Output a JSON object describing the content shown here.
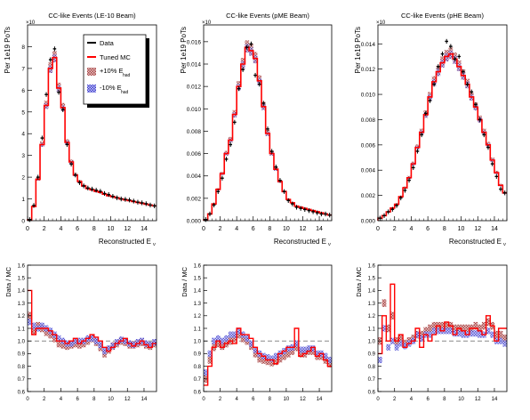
{
  "legend": {
    "data": "Data",
    "tuned_mc": "Tuned MC",
    "plus10": "+10% E",
    "minus10": "-10% E",
    "sub": "had"
  },
  "colors": {
    "data": "#000000",
    "mc": "#ff0000",
    "plus10": "#b04a4a",
    "minus10": "#3a3ad0",
    "ratio_line": "#888888"
  },
  "chart_data": [
    {
      "type": "line",
      "title": "CC-like Events (LE-10 Beam)",
      "xlabel": "Reconstructed E",
      "xlabel_sub": "ν",
      "ylabel": "Per 1e19 PoTs",
      "y_exponent": "×10",
      "xlim": [
        0,
        15.5
      ],
      "ylim": [
        0,
        9
      ],
      "xticks": [
        "0",
        "2",
        "4",
        "6",
        "8",
        "10",
        "12",
        "14"
      ],
      "yticks": [
        "0",
        "1",
        "2",
        "3",
        "4",
        "5",
        "6",
        "7",
        "8"
      ],
      "x": [
        0.25,
        0.75,
        1.25,
        1.75,
        2.25,
        2.75,
        3.25,
        3.75,
        4.25,
        4.75,
        5.25,
        5.75,
        6.25,
        6.75,
        7.25,
        7.75,
        8.25,
        8.75,
        9.25,
        9.75,
        10.25,
        10.75,
        11.25,
        11.75,
        12.25,
        12.75,
        13.25,
        13.75,
        14.25,
        14.75,
        15.25
      ],
      "series": [
        {
          "name": "Data",
          "values": [
            0.05,
            0.7,
            2.0,
            3.8,
            5.8,
            7.4,
            7.9,
            5.9,
            5.1,
            3.5,
            2.6,
            2.1,
            1.75,
            1.6,
            1.5,
            1.45,
            1.4,
            1.35,
            1.25,
            1.2,
            1.12,
            1.05,
            1.0,
            0.98,
            0.95,
            0.9,
            0.85,
            0.82,
            0.78,
            0.72,
            0.68
          ]
        },
        {
          "name": "Tuned MC",
          "values": [
            0.05,
            0.65,
            1.9,
            3.5,
            5.3,
            7.0,
            7.5,
            6.1,
            5.2,
            3.6,
            2.7,
            2.1,
            1.8,
            1.6,
            1.48,
            1.42,
            1.35,
            1.3,
            1.22,
            1.15,
            1.1,
            1.05,
            1.0,
            0.96,
            0.92,
            0.88,
            0.84,
            0.8,
            0.76,
            0.72,
            0.68
          ]
        }
      ],
      "ratio": {
        "ylabel": "Data / MC",
        "ylim": [
          0.6,
          1.6
        ],
        "yticks": [
          "0.6",
          "0.7",
          "0.8",
          "0.9",
          "1.0",
          "1.1",
          "1.2",
          "1.3",
          "1.4",
          "1.5",
          "1.6"
        ],
        "data_values": [
          1.4,
          1.05,
          1.1,
          1.1,
          1.1,
          1.08,
          1.05,
          1.0,
          1.0,
          0.98,
          1.0,
          1.02,
          0.98,
          1.0,
          1.02,
          1.05,
          1.03,
          1.0,
          0.95,
          0.92,
          0.95,
          0.98,
          1.0,
          1.02,
          0.98,
          0.96,
          0.98,
          1.0,
          0.97,
          0.95,
          0.98
        ],
        "plus_values": [
          1.2,
          1.08,
          1.12,
          1.1,
          1.07,
          1.05,
          1.02,
          0.98,
          0.97,
          0.96,
          0.97,
          0.98,
          0.97,
          0.98,
          1.0,
          1.02,
          0.99,
          0.95,
          0.9,
          0.93,
          0.96,
          0.98,
          1.0,
          0.99,
          0.97,
          0.97,
          0.98,
          0.99,
          0.97,
          0.96,
          0.98
        ],
        "minus_values": [
          1.15,
          1.12,
          1.1,
          1.12,
          1.1,
          1.08,
          1.05,
          1.02,
          1.0,
          0.98,
          0.98,
          1.0,
          1.0,
          1.0,
          1.02,
          1.02,
          1.0,
          0.97,
          0.92,
          0.94,
          0.96,
          0.99,
          1.01,
          1.0,
          0.98,
          0.97,
          0.99,
          1.0,
          0.98,
          0.97,
          0.99
        ]
      }
    },
    {
      "type": "line",
      "title": "CC-like Events (pME Beam)",
      "xlabel": "Reconstructed E",
      "xlabel_sub": "ν",
      "ylabel": "Per 1e19 PoTs",
      "y_exponent": "×10",
      "xlim": [
        0,
        15.5
      ],
      "ylim": [
        0,
        0.0175
      ],
      "xticks": [
        "0",
        "2",
        "4",
        "6",
        "8",
        "10",
        "12",
        "14"
      ],
      "yticks": [
        "0.000",
        "0.002",
        "0.004",
        "0.006",
        "0.008",
        "0.010",
        "0.012",
        "0.014",
        "0.016"
      ],
      "x": [
        0.25,
        0.75,
        1.25,
        1.75,
        2.25,
        2.75,
        3.25,
        3.75,
        4.25,
        4.75,
        5.25,
        5.75,
        6.25,
        6.75,
        7.25,
        7.75,
        8.25,
        8.75,
        9.25,
        9.75,
        10.25,
        10.75,
        11.25,
        11.75,
        12.25,
        12.75,
        13.25,
        13.75,
        14.25,
        14.75,
        15.25
      ],
      "series": [
        {
          "name": "Data",
          "values": [
            0.0001,
            0.0006,
            0.0014,
            0.0026,
            0.0038,
            0.0055,
            0.0068,
            0.0088,
            0.0118,
            0.0135,
            0.0155,
            0.0158,
            0.013,
            0.0122,
            0.0105,
            0.0082,
            0.0062,
            0.0048,
            0.0036,
            0.0026,
            0.0018,
            0.0015,
            0.0012,
            0.0011,
            0.001,
            0.0009,
            0.0008,
            0.0007,
            0.0006,
            0.0006,
            0.0005
          ]
        },
        {
          "name": "Tuned MC",
          "values": [
            0.0001,
            0.0006,
            0.0015,
            0.0028,
            0.0042,
            0.006,
            0.0072,
            0.0095,
            0.012,
            0.014,
            0.0155,
            0.0152,
            0.0145,
            0.0125,
            0.0102,
            0.0078,
            0.006,
            0.0046,
            0.0035,
            0.0026,
            0.0019,
            0.0016,
            0.0013,
            0.0012,
            0.0011,
            0.001,
            0.0009,
            0.0008,
            0.0007,
            0.0006,
            0.0005
          ]
        }
      ],
      "ratio": {
        "ylabel": "Data / MC",
        "ylim": [
          0.6,
          1.6
        ],
        "yticks": [
          "0.6",
          "0.7",
          "0.8",
          "0.9",
          "1.0",
          "1.1",
          "1.2",
          "1.3",
          "1.4",
          "1.5",
          "1.6"
        ],
        "data_values": [
          0.65,
          0.8,
          0.95,
          1.0,
          0.95,
          0.98,
          1.0,
          0.98,
          1.1,
          1.05,
          1.05,
          1.02,
          0.95,
          0.9,
          0.88,
          0.85,
          0.85,
          0.82,
          0.9,
          0.92,
          0.95,
          0.95,
          1.1,
          0.88,
          0.9,
          0.92,
          0.95,
          0.88,
          0.9,
          0.85,
          0.8
        ],
        "plus_values": [
          0.7,
          0.85,
          0.95,
          0.98,
          0.96,
          0.98,
          1.0,
          1.02,
          1.05,
          1.02,
          1.0,
          0.96,
          0.9,
          0.86,
          0.85,
          0.84,
          0.83,
          0.84,
          0.86,
          0.88,
          0.9,
          0.92,
          0.95,
          0.9,
          0.9,
          0.92,
          0.92,
          0.88,
          0.88,
          0.85,
          0.82
        ],
        "minus_values": [
          0.75,
          0.9,
          1.0,
          1.02,
          1.0,
          1.02,
          1.05,
          1.05,
          1.08,
          1.05,
          1.02,
          0.98,
          0.93,
          0.9,
          0.88,
          0.87,
          0.86,
          0.88,
          0.9,
          0.92,
          0.94,
          0.95,
          0.98,
          0.93,
          0.93,
          0.94,
          0.94,
          0.9,
          0.9,
          0.88,
          0.85
        ]
      }
    },
    {
      "type": "line",
      "title": "CC-like Events (pHE Beam)",
      "xlabel": "Reconstructed E",
      "xlabel_sub": "ν",
      "ylabel": "Per 1e19 PoTs",
      "y_exponent": "×10",
      "xlim": [
        0,
        15.5
      ],
      "ylim": [
        0,
        0.0155
      ],
      "xticks": [
        "0",
        "2",
        "4",
        "6",
        "8",
        "10",
        "12",
        "14"
      ],
      "yticks": [
        "0.000",
        "0.002",
        "0.004",
        "0.006",
        "0.008",
        "0.010",
        "0.012",
        "0.014"
      ],
      "x": [
        0.25,
        0.75,
        1.25,
        1.75,
        2.25,
        2.75,
        3.25,
        3.75,
        4.25,
        4.75,
        5.25,
        5.75,
        6.25,
        6.75,
        7.25,
        7.75,
        8.25,
        8.75,
        9.25,
        9.75,
        10.25,
        10.75,
        11.25,
        11.75,
        12.25,
        12.75,
        13.25,
        13.75,
        14.25,
        14.75,
        15.25
      ],
      "series": [
        {
          "name": "Data",
          "values": [
            0.0002,
            0.0004,
            0.0007,
            0.0009,
            0.0012,
            0.0018,
            0.0024,
            0.0032,
            0.0042,
            0.0055,
            0.0068,
            0.0085,
            0.0095,
            0.0108,
            0.0122,
            0.0132,
            0.0142,
            0.0138,
            0.0128,
            0.013,
            0.0118,
            0.0108,
            0.0102,
            0.0092,
            0.008,
            0.0068,
            0.0058,
            0.0045,
            0.0035,
            0.0025,
            0.0022
          ]
        },
        {
          "name": "Tuned MC",
          "values": [
            0.0002,
            0.0004,
            0.0007,
            0.001,
            0.0013,
            0.0019,
            0.0026,
            0.0034,
            0.0045,
            0.0058,
            0.007,
            0.0084,
            0.0098,
            0.011,
            0.0118,
            0.0125,
            0.013,
            0.0132,
            0.0128,
            0.0122,
            0.0115,
            0.0108,
            0.0098,
            0.009,
            0.008,
            0.007,
            0.006,
            0.0048,
            0.0038,
            0.0028,
            0.0022
          ]
        }
      ],
      "ratio": {
        "ylabel": "Data / MC",
        "ylim": [
          0.6,
          1.6
        ],
        "yticks": [
          "0.6",
          "0.7",
          "0.8",
          "0.9",
          "1.0",
          "1.1",
          "1.2",
          "1.3",
          "1.4",
          "1.5",
          "1.6"
        ],
        "data_values": [
          0.9,
          1.2,
          1.0,
          1.45,
          1.0,
          1.05,
          0.95,
          0.98,
          1.0,
          1.1,
          0.95,
          1.05,
          1.0,
          1.05,
          1.12,
          1.08,
          1.15,
          1.12,
          1.05,
          1.1,
          1.08,
          1.05,
          1.1,
          1.1,
          1.08,
          1.05,
          1.2,
          1.12,
          1.0,
          1.1,
          1.1
        ],
        "plus_values": [
          1.0,
          1.3,
          1.1,
          1.2,
          1.0,
          1.02,
          0.98,
          1.0,
          1.02,
          1.05,
          1.05,
          1.08,
          1.1,
          1.12,
          1.12,
          1.12,
          1.12,
          1.12,
          1.1,
          1.1,
          1.1,
          1.1,
          1.1,
          1.12,
          1.1,
          1.12,
          1.15,
          1.12,
          1.05,
          1.05,
          1.02
        ],
        "minus_values": [
          0.85,
          1.1,
          0.95,
          1.0,
          0.95,
          0.98,
          0.96,
          0.98,
          1.0,
          1.05,
          1.02,
          1.05,
          1.05,
          1.08,
          1.08,
          1.08,
          1.08,
          1.08,
          1.06,
          1.06,
          1.05,
          1.05,
          1.06,
          1.06,
          1.05,
          1.05,
          1.08,
          1.05,
          1.0,
          1.0,
          0.98
        ]
      }
    }
  ]
}
